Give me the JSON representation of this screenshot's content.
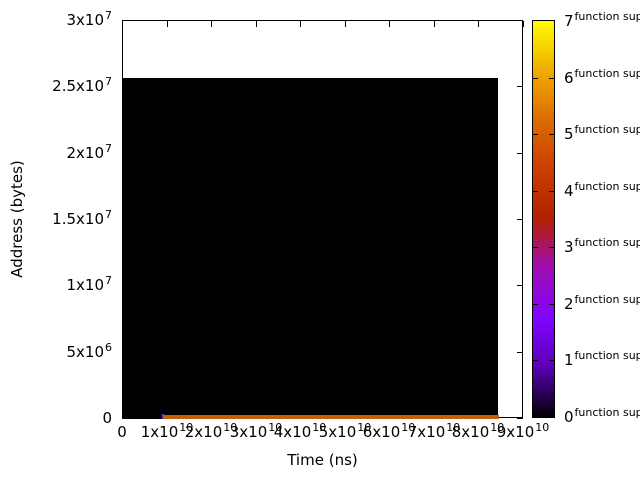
{
  "chart_data": {
    "type": "heatmap",
    "title": "",
    "xlabel": "Time (ns)",
    "ylabel": "Address (bytes)",
    "xlim": [
      0,
      90000000000
    ],
    "ylim": [
      0,
      30000000
    ],
    "grid": false,
    "legend_position": "colorbar-right",
    "x_ticks": [
      {
        "value": 0,
        "base": "0",
        "sup": ""
      },
      {
        "value": 10000000000,
        "base": "1x10",
        "sup": "10"
      },
      {
        "value": 20000000000,
        "base": "2x10",
        "sup": "10"
      },
      {
        "value": 30000000000,
        "base": "3x10",
        "sup": "10"
      },
      {
        "value": 40000000000,
        "base": "4x10",
        "sup": "10"
      },
      {
        "value": 50000000000,
        "base": "5x10",
        "sup": "10"
      },
      {
        "value": 60000000000,
        "base": "6x10",
        "sup": "10"
      },
      {
        "value": 70000000000,
        "base": "7x10",
        "sup": "10"
      },
      {
        "value": 80000000000,
        "base": "8x10",
        "sup": "10"
      },
      {
        "value": 90000000000,
        "base": "9x10",
        "sup": "10"
      }
    ],
    "y_ticks": [
      {
        "value": 0,
        "base": "0",
        "sup": ""
      },
      {
        "value": 5000000,
        "base": "5x10",
        "sup": "6"
      },
      {
        "value": 10000000,
        "base": "1x10",
        "sup": "7"
      },
      {
        "value": 15000000,
        "base": "1.5x10",
        "sup": "7"
      },
      {
        "value": 20000000,
        "base": "2x10",
        "sup": "7"
      },
      {
        "value": 25000000,
        "base": "2.5x10",
        "sup": "7"
      },
      {
        "value": 30000000,
        "base": "3x10",
        "sup": "7"
      }
    ],
    "colorbar": {
      "min": 0,
      "max": 7,
      "tick_labels": [
        "0",
        "1",
        "2",
        "3",
        "4",
        "5",
        "6",
        "7"
      ],
      "palette_name": "gnuplot-default-rgbformulae-7-5-15",
      "gradient_stops": [
        {
          "value": 0,
          "color": "#000000"
        },
        {
          "value": 0.875,
          "color": "#5A00B4"
        },
        {
          "value": 1.75,
          "color": "#8004FF"
        },
        {
          "value": 2.625,
          "color": "#9C0DB4"
        },
        {
          "value": 3.5,
          "color": "#B42000"
        },
        {
          "value": 4.375,
          "color": "#CA3E00"
        },
        {
          "value": 5.25,
          "color": "#DD6C00"
        },
        {
          "value": 6.125,
          "color": "#EFAB00"
        },
        {
          "value": 7,
          "color": "#FFFF00"
        }
      ]
    },
    "regions": [
      {
        "name": "zero-value-block",
        "value": 0,
        "color": "#000000",
        "x": [
          0,
          84500000000
        ],
        "y": [
          0,
          25600000
        ]
      },
      {
        "name": "low-address-activity-band",
        "value": 5,
        "color": "#C75F06",
        "x": [
          9200000000,
          84500000000
        ],
        "y": [
          0,
          190000
        ]
      },
      {
        "name": "start-spike",
        "value": 1.5,
        "color": "#7B2FD8",
        "x": [
          9000000000,
          9450000000
        ],
        "y": [
          0,
          330000
        ]
      }
    ]
  }
}
